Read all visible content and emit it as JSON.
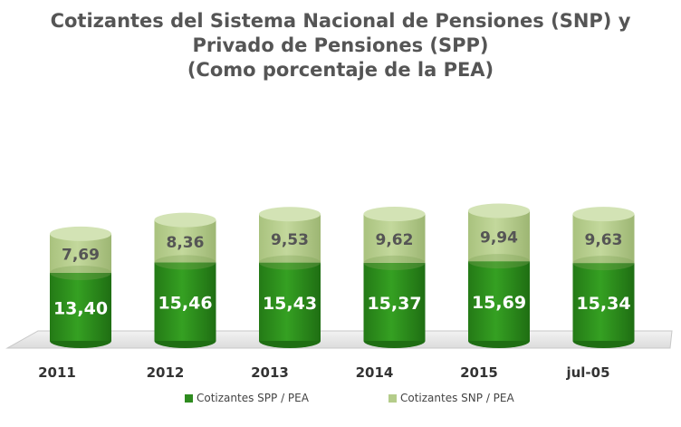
{
  "chart_data": {
    "type": "bar",
    "stacked": true,
    "title": [
      "Cotizantes del Sistema Nacional de Pensiones  (SNP) y",
      "Privado de Pensiones (SPP)",
      "(Como porcentaje de la PEA)"
    ],
    "categories": [
      "2011",
      "2012",
      "2013",
      "2014",
      "2015",
      "jul-05"
    ],
    "series": [
      {
        "name": "Cotizantes SPP / PEA",
        "values": [
          13.4,
          15.46,
          15.43,
          15.37,
          15.69,
          15.34
        ],
        "labels": [
          "13,40",
          "15,46",
          "15,43",
          "15,37",
          "15,69",
          "15,34"
        ],
        "color": "#2e8b1f"
      },
      {
        "name": "Cotizantes SNP / PEA",
        "values": [
          7.69,
          8.36,
          9.53,
          9.62,
          9.94,
          9.63
        ],
        "labels": [
          "7,69",
          "8,36",
          "9,53",
          "9,62",
          "9,94",
          "9,63"
        ],
        "color": "#b4cc8a"
      }
    ],
    "legend_position": "bottom",
    "grid": false
  }
}
